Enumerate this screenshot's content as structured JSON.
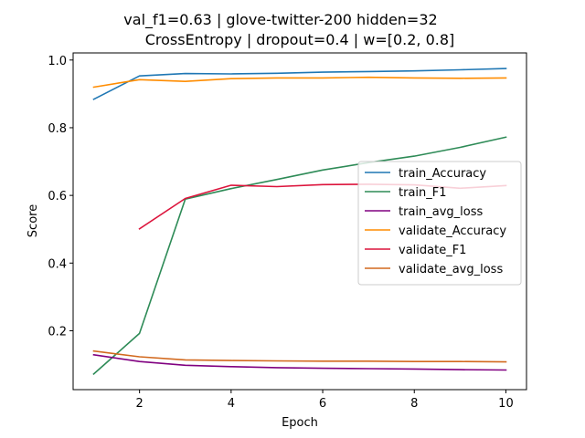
{
  "chart_data": {
    "type": "line",
    "title_lines": [
      "val_f1=0.63 | glove-twitter-200  hidden=32",
      "CrossEntropy | dropout=0.4 | w=[0.2, 0.8]"
    ],
    "xlabel": "Epoch",
    "ylabel": "Score",
    "xlim": [
      0.55,
      10.45
    ],
    "ylim": [
      0.026,
      1.021
    ],
    "xticks": [
      2,
      4,
      6,
      8,
      10
    ],
    "yticks": [
      0.2,
      0.4,
      0.6,
      0.8,
      1.0
    ],
    "xtick_labels": [
      "2",
      "4",
      "6",
      "8",
      "10"
    ],
    "ytick_labels": [
      "0.2",
      "0.4",
      "0.6",
      "0.8",
      "1.0"
    ],
    "grid": false,
    "legend_position": "center-right",
    "series": [
      {
        "name": "train_Accuracy",
        "color": "#1f77b4",
        "x": [
          1,
          2,
          3,
          4,
          5,
          6,
          7,
          8,
          9,
          10
        ],
        "y": [
          0.884,
          0.953,
          0.96,
          0.959,
          0.961,
          0.964,
          0.966,
          0.968,
          0.971,
          0.975
        ]
      },
      {
        "name": "train_F1",
        "color": "#2e8b57",
        "x": [
          1,
          2,
          3,
          4,
          5,
          6,
          7,
          8,
          9,
          10
        ],
        "y": [
          0.072,
          0.192,
          0.589,
          0.62,
          0.647,
          0.675,
          0.697,
          0.716,
          0.742,
          0.772
        ]
      },
      {
        "name": "train_avg_loss",
        "color": "#800080",
        "x": [
          1,
          2,
          3,
          4,
          5,
          6,
          7,
          8,
          9,
          10
        ],
        "y": [
          0.129,
          0.109,
          0.098,
          0.094,
          0.091,
          0.089,
          0.088,
          0.087,
          0.085,
          0.084
        ]
      },
      {
        "name": "validate_Accuracy",
        "color": "#ff8c00",
        "x": [
          1,
          2,
          3,
          4,
          5,
          6,
          7,
          8,
          9,
          10
        ],
        "y": [
          0.92,
          0.942,
          0.937,
          0.945,
          0.947,
          0.947,
          0.949,
          0.947,
          0.946,
          0.947
        ]
      },
      {
        "name": "validate_F1",
        "color": "#dc143c",
        "x": [
          2,
          3,
          4,
          5,
          6,
          7,
          8,
          9,
          10
        ],
        "y": [
          0.501,
          0.591,
          0.63,
          0.626,
          0.632,
          0.633,
          0.631,
          0.621,
          0.629
        ]
      },
      {
        "name": "validate_avg_loss",
        "color": "#d2691e",
        "x": [
          1,
          2,
          3,
          4,
          5,
          6,
          7,
          8,
          9,
          10
        ],
        "y": [
          0.14,
          0.123,
          0.114,
          0.112,
          0.111,
          0.11,
          0.11,
          0.109,
          0.109,
          0.108
        ]
      }
    ]
  }
}
